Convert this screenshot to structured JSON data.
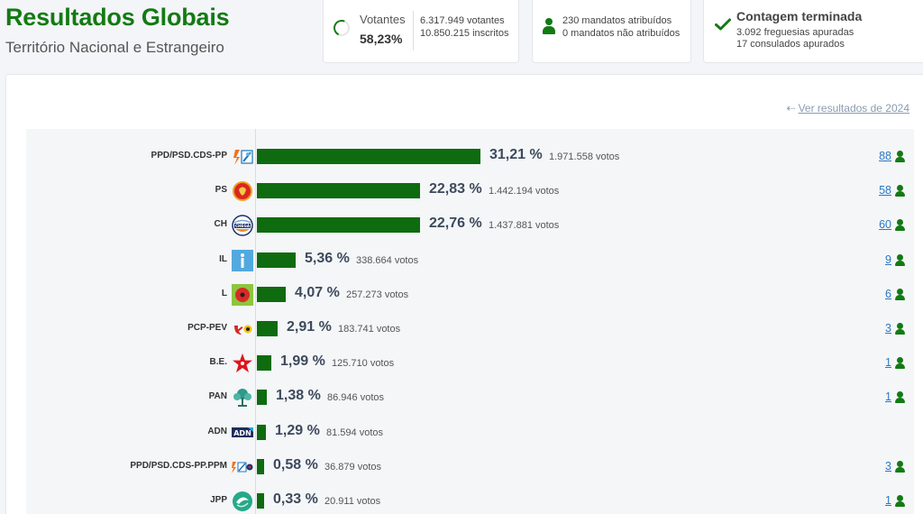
{
  "header": {
    "title": "Resultados Globais",
    "subtitle": "Território Nacional e Estrangeiro"
  },
  "cards": {
    "votantes": {
      "label": "Votantes",
      "percent": "58,23%",
      "line1": "6.317.949 votantes",
      "line2": "10.850.215 inscritos"
    },
    "mandatos": {
      "line1": "230 mandatos atribuídos",
      "line2": "0 mandatos não atribuídos"
    },
    "contagem": {
      "title": "Contagem terminada",
      "line1": "3.092 freguesias apuradas",
      "line2": "17 consulados apurados"
    }
  },
  "previous_link": "Ver resultados de 2024",
  "colors": {
    "accent": "#137a13",
    "bar": "#0f6b0f",
    "link": "#2c77c3"
  },
  "parties": [
    {
      "name": "PPD/PSD.CDS-PP",
      "logo": "ad-coalition-logo",
      "share": 31.21,
      "pct": "31,21 %",
      "votes": "1.971.558 votos",
      "seats": "88"
    },
    {
      "name": "PS",
      "logo": "ps-fist-rose-logo",
      "share": 22.83,
      "pct": "22,83 %",
      "votes": "1.442.194 votos",
      "seats": "58"
    },
    {
      "name": "CH",
      "logo": "chega-logo",
      "share": 22.76,
      "pct": "22,76 %",
      "votes": "1.437.881 votos",
      "seats": "60"
    },
    {
      "name": "IL",
      "logo": "iniciativa-liberal-logo",
      "share": 5.36,
      "pct": "5,36 %",
      "votes": "338.664 votos",
      "seats": "9"
    },
    {
      "name": "L",
      "logo": "livre-poppy-logo",
      "share": 4.07,
      "pct": "4,07 %",
      "votes": "257.273 votos",
      "seats": "6"
    },
    {
      "name": "PCP-PEV",
      "logo": "cdu-hammer-sickle-logo",
      "share": 2.91,
      "pct": "2,91 %",
      "votes": "183.741 votos",
      "seats": "3"
    },
    {
      "name": "B.E.",
      "logo": "bloco-star-logo",
      "share": 1.99,
      "pct": "1,99 %",
      "votes": "125.710 votos",
      "seats": "1"
    },
    {
      "name": "PAN",
      "logo": "pan-tree-logo",
      "share": 1.38,
      "pct": "1,38 %",
      "votes": "86.946 votos",
      "seats": "1"
    },
    {
      "name": "ADN",
      "logo": "adn-logo",
      "share": 1.29,
      "pct": "1,29 %",
      "votes": "81.594 votos",
      "seats": ""
    },
    {
      "name": "PPD/PSD.CDS-PP.PPM",
      "logo": "ad-ppm-coalition-logo",
      "share": 0.58,
      "pct": "0,58 %",
      "votes": "36.879 votos",
      "seats": "3"
    },
    {
      "name": "JPP",
      "logo": "jpp-logo",
      "share": 0.33,
      "pct": "0,33 %",
      "votes": "20.911 votos",
      "seats": "1"
    }
  ]
}
